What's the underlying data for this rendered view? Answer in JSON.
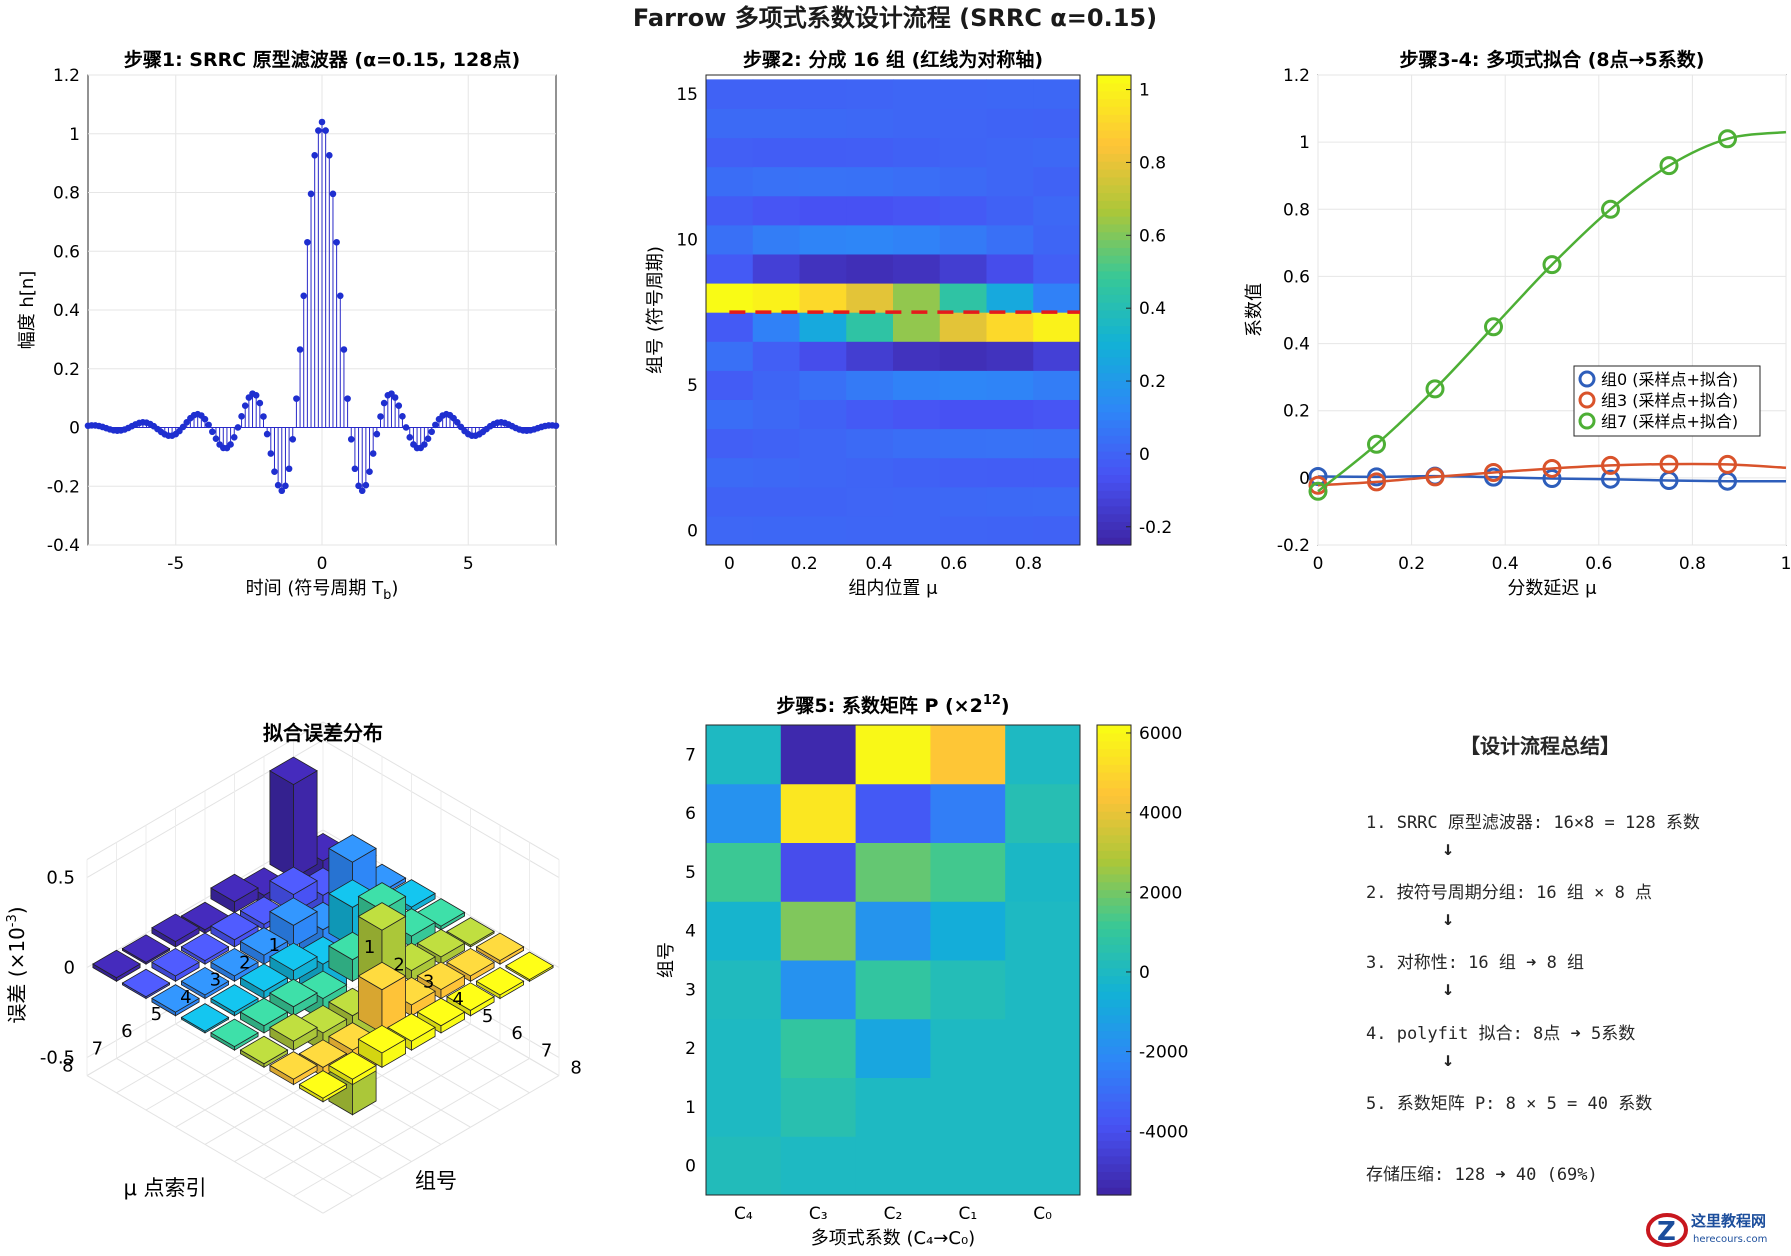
{
  "page": {
    "title": "Farrow 多项式系数设计流程 (SRRC α=0.15)"
  },
  "colors": {
    "blue": "#0072BD",
    "stem": "#0000CD",
    "red": "#D95319",
    "green": "#4DAF35",
    "red_dash": "#E41A1C"
  },
  "chart_data": [
    {
      "id": "step1",
      "type": "stem",
      "title": "步骤1: SRRC 原型滤波器 (α=0.15, 128点)",
      "xlabel": "时间 (符号周期 T",
      "xlabel_sub": "b",
      "xlabel_end": ")",
      "ylabel": "幅度 h[n]",
      "xlim": [
        -8,
        8
      ],
      "ylim": [
        -0.4,
        1.2
      ],
      "xticks": [
        -5,
        0,
        5
      ],
      "yticks": [
        -0.4,
        -0.2,
        0,
        0.2,
        0.4,
        0.6,
        0.8,
        1,
        1.2
      ],
      "ytick_labels": [
        "-0.4",
        "-0.2",
        "0",
        "0.2",
        "0.4",
        "0.6",
        "0.8",
        "1",
        "1.2"
      ],
      "rolloff": 0.15,
      "samples_per_symbol": 8,
      "num_points": 128,
      "peak": 1.04
    },
    {
      "id": "step2",
      "type": "heatmap",
      "title": "步骤2: 分成 16 组 (红线为对称轴)",
      "xlabel": "组内位置 μ",
      "ylabel": "组号 (符号周期)",
      "xticks": [
        0,
        0.2,
        0.4,
        0.6,
        0.8
      ],
      "xtick_labels": [
        "0",
        "0.2",
        "0.4",
        "0.6",
        "0.8"
      ],
      "yticks": [
        0,
        5,
        10,
        15
      ],
      "ytick_labels": [
        "0",
        "5",
        "10",
        "15"
      ],
      "rows": 16,
      "cols": 8,
      "symmetry_axis": 7.5,
      "clim": [
        -0.25,
        1.04
      ],
      "colorbar_ticks": [
        -0.2,
        0,
        0.2,
        0.4,
        0.6,
        0.8,
        1
      ],
      "colorbar_labels": [
        "-0.2",
        "0",
        "0.2",
        "0.4",
        "0.6",
        "0.8",
        "1"
      ]
    },
    {
      "id": "step34",
      "type": "line",
      "title": "步骤3-4: 多项式拟合 (8点→5系数)",
      "xlabel": "分数延迟 μ",
      "ylabel": "系数值",
      "xlim": [
        0,
        1
      ],
      "ylim": [
        -0.2,
        1.2
      ],
      "xticks": [
        0,
        0.2,
        0.4,
        0.6,
        0.8,
        1
      ],
      "xtick_labels": [
        "0",
        "0.2",
        "0.4",
        "0.6",
        "0.8",
        "1"
      ],
      "yticks": [
        -0.2,
        0,
        0.2,
        0.4,
        0.6,
        0.8,
        1,
        1.2
      ],
      "ytick_labels": [
        "-0.2",
        "0",
        "0.2",
        "0.4",
        "0.6",
        "0.8",
        "1",
        "1.2"
      ],
      "legend_position": "center-right",
      "series": [
        {
          "name": "组0 (采样点+拟合)",
          "color": "#2E5EBB",
          "x": [
            0,
            0.125,
            0.25,
            0.375,
            0.5,
            0.625,
            0.75,
            0.875
          ],
          "y": [
            0.004,
            0.003,
            0.005,
            0.002,
            -0.002,
            -0.004,
            -0.008,
            -0.01
          ],
          "curve_end": -0.01
        },
        {
          "name": "组3 (采样点+拟合)",
          "color": "#D9532B",
          "x": [
            0,
            0.125,
            0.25,
            0.375,
            0.5,
            0.625,
            0.75,
            0.875
          ],
          "y": [
            -0.022,
            -0.012,
            0.003,
            0.016,
            0.028,
            0.037,
            0.041,
            0.04
          ],
          "curve_end": 0.03
        },
        {
          "name": "组7 (采样点+拟合)",
          "color": "#4DAF35",
          "x": [
            0,
            0.125,
            0.25,
            0.375,
            0.5,
            0.625,
            0.75,
            0.875
          ],
          "y": [
            -0.04,
            0.1,
            0.265,
            0.45,
            0.635,
            0.8,
            0.93,
            1.01
          ],
          "curve_end": 1.03
        }
      ]
    },
    {
      "id": "err3d",
      "type": "bar3d",
      "title": "拟合误差分布",
      "xlabel": "μ 点索引",
      "ylabel": "组号",
      "zlabel": "误差 (×10",
      "zlabel_sup": "-3",
      "zlabel_end": ")",
      "zticks": [
        -0.5,
        0,
        0.5
      ],
      "ztick_labels": [
        "-0.5",
        "0",
        "0.5"
      ],
      "xtick_labels": [
        "1",
        "2",
        "3",
        "4",
        "5",
        "6",
        "7",
        "8"
      ],
      "ytick_labels": [
        "1",
        "2",
        "3",
        "4",
        "5",
        "6",
        "7",
        "8"
      ],
      "zlim": [
        -0.6,
        0.6
      ],
      "values": [
        [
          -0.18,
          0.52,
          -0.05,
          0.06,
          -0.02,
          0.03,
          0.01,
          0.02
        ],
        [
          0.05,
          -0.48,
          0.1,
          0.03,
          0.04,
          0.02,
          0.03,
          0.01
        ],
        [
          0.02,
          0.28,
          -0.46,
          0.12,
          0.05,
          0.03,
          0.02,
          0.02
        ],
        [
          0.03,
          0.1,
          0.22,
          -0.28,
          0.06,
          0.04,
          0.02,
          0.01
        ],
        [
          0.02,
          0.06,
          0.3,
          0.12,
          -0.12,
          0.05,
          0.04,
          0.02
        ],
        [
          0.01,
          0.04,
          0.06,
          0.38,
          -0.55,
          -0.1,
          0.05,
          0.02
        ],
        [
          0.02,
          0.03,
          0.05,
          0.06,
          0.24,
          -0.16,
          -0.05,
          0.03
        ],
        [
          0.01,
          0.02,
          0.03,
          0.04,
          0.05,
          0.08,
          0.03,
          0.02
        ]
      ]
    },
    {
      "id": "step5",
      "type": "heatmap",
      "title": "步骤5: 系数矩阵 P (×2",
      "title_sup": "12",
      "title_end": ")",
      "xlabel": "多项式系数 (C₄→C₀)",
      "ylabel": "组号",
      "xtick_labels": [
        "C₄",
        "C₃",
        "C₂",
        "C₁",
        "C₀"
      ],
      "ytick_labels": [
        "0",
        "1",
        "2",
        "3",
        "4",
        "5",
        "6",
        "7"
      ],
      "clim": [
        -5600,
        6200
      ],
      "colorbar_ticks": [
        -4000,
        -2000,
        0,
        2000,
        4000,
        6000
      ],
      "colorbar_labels": [
        "-4000",
        "-2000",
        "0",
        "2000",
        "4000",
        "6000"
      ],
      "values": [
        [
          200,
          0,
          0,
          0,
          0
        ],
        [
          0,
          500,
          0,
          0,
          0
        ],
        [
          0,
          900,
          -1000,
          0,
          0
        ],
        [
          100,
          -1800,
          900,
          300,
          0
        ],
        [
          -300,
          2200,
          -1700,
          -700,
          0
        ],
        [
          1200,
          -4100,
          1800,
          1300,
          -100
        ],
        [
          -1800,
          5600,
          -3700,
          -2500,
          400
        ],
        [
          0,
          -5500,
          6100,
          4600,
          0
        ]
      ]
    }
  ],
  "summary": {
    "title": "【设计流程总结】",
    "steps": [
      "1. SRRC 原型滤波器: 16×8 = 128 系数",
      "2. 按符号周期分组: 16 组 × 8 点",
      "3. 对称性: 16 组 ➜ 8 组",
      "4. polyfit 拟合: 8点 ➜ 5系数",
      "5. 系数矩阵 P: 8 × 5 = 40 系数"
    ],
    "arrow": "↓",
    "compression": "存储压缩: 128 ➜ 40 (69%)"
  },
  "logo": {
    "title": "这里教程网",
    "url": "herecours.com"
  }
}
